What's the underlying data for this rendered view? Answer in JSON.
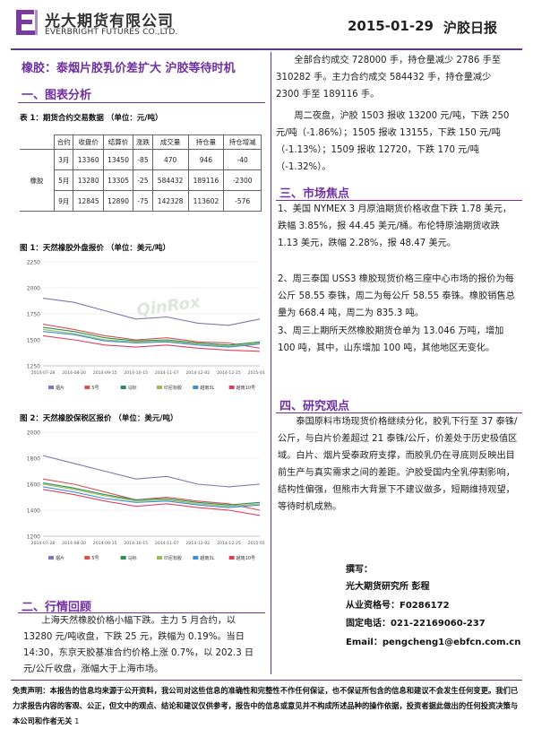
{
  "header": {
    "company_cn": "光大期货有限公司",
    "company_en": "EVERBRIGHT FUTURES CO.,LTD.",
    "date": "2015-01-29",
    "report_type": "沪胶日报"
  },
  "headline": "橡胶：泰烟片胶乳价差扩大 沪胶等待时机",
  "sections": {
    "s1": "一、图表分析",
    "s2": "二、行情回顾",
    "s3": "三、市场焦点",
    "s4": "四、研究观点"
  },
  "table1": {
    "caption": "表 1：期货合约交易数据 （单位：元/吨）",
    "headers": [
      "合约",
      "收盘价",
      "结算价",
      "涨跌",
      "成交量",
      "持仓量",
      "持仓增减"
    ],
    "row_label": "橡胶",
    "rows": [
      [
        "3月",
        "13360",
        "13450",
        "-85",
        "470",
        "946",
        "-40"
      ],
      [
        "5月",
        "13280",
        "13305",
        "-25",
        "584432",
        "189116",
        "-2300"
      ],
      [
        "9月",
        "12845",
        "12890",
        "-75",
        "142328",
        "113602",
        "-576"
      ]
    ]
  },
  "fig1": {
    "caption": "图 1：天然橡胶外盘报价 （单位：美元/吨）",
    "watermark": "QinRox",
    "chart_data": {
      "type": "line",
      "ylim": [
        1250,
        2250
      ],
      "yticks": [
        "2250",
        "2000",
        "1750",
        "1500",
        "1250"
      ],
      "xticks": [
        "2014-07-28",
        "2014-08-20",
        "2014-09-15",
        "2014-10-15",
        "2014-11-07",
        "2014-12-02",
        "2014-12-25",
        "2015-01-21"
      ],
      "series": [
        {
          "name": "烟片",
          "color": "#7a7ab8",
          "values": [
            1900,
            1860,
            1780,
            1700,
            1720,
            1660,
            1640,
            1700
          ]
        },
        {
          "name": "5号",
          "color": "#d85050",
          "values": [
            1650,
            1600,
            1540,
            1500,
            1520,
            1480,
            1470,
            1420
          ]
        },
        {
          "name": "马标",
          "color": "#2e8b57",
          "values": [
            1620,
            1580,
            1520,
            1490,
            1500,
            1470,
            1450,
            1480
          ]
        },
        {
          "name": "印尼标胶",
          "color": "#9bbb59",
          "values": [
            1600,
            1560,
            1500,
            1480,
            1490,
            1460,
            1440,
            1470
          ]
        },
        {
          "name": "越南3L",
          "color": "#3b8fd9",
          "values": [
            1580,
            1550,
            1490,
            1470,
            1480,
            1450,
            1430,
            1460
          ]
        },
        {
          "name": "越南10号",
          "color": "#e04060",
          "values": [
            1540,
            1500,
            1450,
            1430,
            1450,
            1420,
            1400,
            1390
          ]
        }
      ]
    }
  },
  "fig2": {
    "caption": "图 2：天然橡胶保税区报价 （单位：美元/吨）",
    "chart_data": {
      "type": "line",
      "ylim": [
        1200,
        2000
      ],
      "yticks": [
        "2000",
        "1800",
        "1600",
        "1400",
        "1200"
      ],
      "xticks": [
        "2014-07-28",
        "2014-08-20",
        "2014-09-15",
        "2014-10-15",
        "2014-11-07",
        "2014-12-02",
        "2014-12-25",
        "2015-01-21"
      ],
      "series": [
        {
          "name": "烟片",
          "color": "#7a7ab8",
          "values": [
            1820,
            1760,
            1700,
            1640,
            1660,
            1600,
            1580,
            1600
          ]
        },
        {
          "name": "5号",
          "color": "#d85050",
          "values": [
            1640,
            1600,
            1540,
            1480,
            1500,
            1470,
            1450,
            1400
          ]
        },
        {
          "name": "马标",
          "color": "#2e8b57",
          "values": [
            1610,
            1570,
            1520,
            1480,
            1490,
            1460,
            1440,
            1460
          ]
        },
        {
          "name": "印尼标胶",
          "color": "#9bbb59",
          "values": [
            1600,
            1560,
            1510,
            1470,
            1480,
            1450,
            1430,
            1450
          ]
        },
        {
          "name": "越南3L",
          "color": "#3b8fd9",
          "values": [
            1580,
            1540,
            1490,
            1460,
            1470,
            1440,
            1420,
            1440
          ]
        },
        {
          "name": "越南10号",
          "color": "#e04060",
          "values": [
            1560,
            1520,
            1470,
            1430,
            1450,
            1420,
            1400,
            1360
          ]
        }
      ]
    }
  },
  "review": {
    "p1": "上海天然橡胶价格小幅下跌。主力 5 月合约，以 13280 元/吨收盘，下跌 25 元，跌幅为 0.19%。当日 14:30，东京天胶基准合约价格上涨 0.7%，以 202.3 日元/公斤收盘，涨幅大于上海市场。",
    "p2": "全部合约成交 728000 手，持仓量减少 2786 手至 310282 手。主力合约成交 584432 手，持仓量减少 2300 手至 189116 手。",
    "p3": "周二夜盘，沪胶 1503 报收 13200 元/吨，下跌 250 元/吨（-1.86%）；1505 报收 13155，下跌 150 元/吨（-1.13%）；1509 报收 12720，下跌 170 元/吨（-1.32%）。"
  },
  "focus": {
    "items": [
      "1、美国 NYMEX 3 月原油期货价格收盘下跌 1.78 美元，跌幅 3.85%，报 44.45 美元/桶。布伦特原油期货收跌 1.13 美元，跌幅 2.28%，报 48.47 美元。",
      "2、周三泰国 USS3 橡胶现货价格三座中心市场的报价为每公斤 58.55 泰铢，周二为每公斤 58.55 泰铢。橡胶销售总量为 668.4 吨，周二为 835.3 吨。",
      "3、周三上期所天然橡胶期货仓单为 13.046 万吨，增加 100 吨，其中，山东增加 100 吨，其他地区无变化。"
    ]
  },
  "view": {
    "p1": "泰国原料市场现货价格继续分化，胶乳下行至 37 泰铢/公斤，与白片价差超过 21 泰铢/公斤，价差处于历史极值区域。白片、烟片受泰政府支撑，而胶乳仍在寻底则反映出目前生产与真实需求之间的差距。沪胶受国内全乳停割影响，结构性偏强，但熊市大背景下不建议做多，短期维持观望，等待时机成熟。"
  },
  "contact": {
    "line1": "撰写：",
    "line2": "光大期货研究所 彭程",
    "line3": "从业资格号：F0286172",
    "line4": "固定电话：021-22169060-237",
    "line5": "Email：pengcheng1@ebfcn.com.cn"
  },
  "disclaimer": "免责声明：本报告的信息均来源于公开资料，我公司对这些信息的准确性和完整性不作任何保证，也不保证所包含的信息和建议不会发生任何变更。我们已力求报告内容的客观、公正，但文中的观点、结论和建议仅供参考，报告中的信息或意见并不构成所述品种的操作依据，投资者据此做出的任何投资决策与本公司和作者无关",
  "page_number": "1",
  "colors": {
    "accent": "#7030a0",
    "rule": "#5b3a8c"
  }
}
